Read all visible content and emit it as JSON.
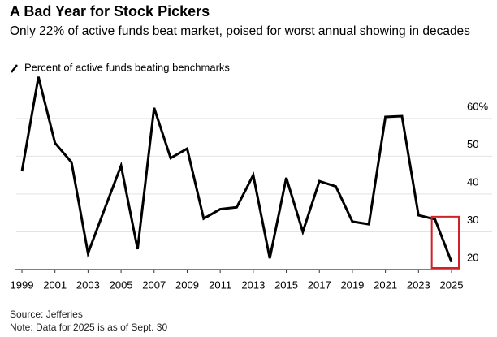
{
  "chart_data": {
    "type": "line",
    "title": "A Bad Year for Stock Pickers",
    "subtitle": "Only 22% of active funds beat market, poised for worst annual showing in decades",
    "source": "Source: Jefferies",
    "note": "Note: Data for 2025 is as of Sept. 30",
    "x": [
      1999,
      2000,
      2001,
      2002,
      2003,
      2004,
      2005,
      2006,
      2007,
      2008,
      2009,
      2010,
      2011,
      2012,
      2013,
      2014,
      2015,
      2016,
      2017,
      2018,
      2019,
      2020,
      2021,
      2022,
      2023,
      2024,
      2025
    ],
    "series": [
      {
        "name": "Percent of active funds beating benchmarks",
        "color": "#000000",
        "values": [
          46,
          71,
          53.5,
          48.4,
          24.3,
          36,
          47.5,
          25.4,
          62.8,
          49.5,
          52,
          33.5,
          36,
          36.5,
          45,
          23,
          44.3,
          30,
          43.4,
          42,
          32.7,
          32,
          60.4,
          60.6,
          34.4,
          33.3,
          22
        ]
      }
    ],
    "xlim": [
      1999,
      2025
    ],
    "xticks": [
      1999,
      2001,
      2003,
      2005,
      2007,
      2009,
      2011,
      2013,
      2015,
      2017,
      2019,
      2021,
      2023,
      2025
    ],
    "ylim": [
      20,
      72
    ],
    "yticks": [
      20,
      30,
      40,
      50,
      {
        "value": 60,
        "label": "60%"
      }
    ],
    "grid": true,
    "highlight_color": "#d0202a"
  }
}
